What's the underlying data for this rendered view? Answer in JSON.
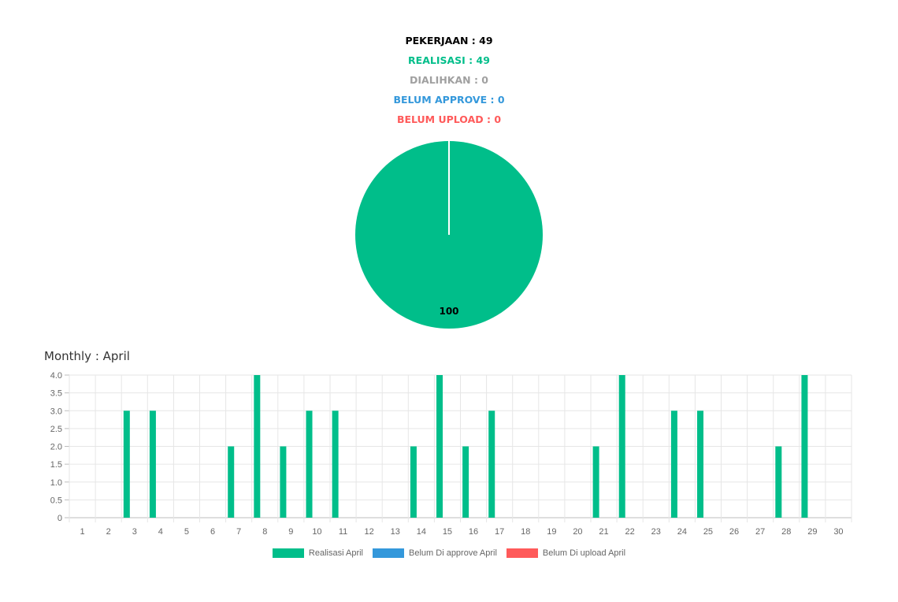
{
  "summary": {
    "pekerjaan": "PEKERJAAN : 49",
    "realisasi": "REALISASI : 49",
    "dialihkan": "DIALIHKAN : 0",
    "belum_approve": "BELUM APPROVE : 0",
    "belum_upload": "BELUM UPLOAD : 0"
  },
  "colors": {
    "pekerjaan": "#000000",
    "realisasi": "#00be8a",
    "dialihkan": "#a0a0a0",
    "belum_approve": "#3498db",
    "belum_upload": "#ff5a5a"
  },
  "monthly_title": "Monthly : April",
  "chart_data": [
    {
      "type": "pie",
      "slices": [
        {
          "value": 100,
          "color": "#00be8a",
          "label": "100"
        }
      ]
    },
    {
      "type": "bar",
      "categories": [
        "1",
        "2",
        "3",
        "4",
        "5",
        "6",
        "7",
        "8",
        "9",
        "10",
        "11",
        "12",
        "13",
        "14",
        "15",
        "16",
        "17",
        "18",
        "19",
        "20",
        "21",
        "22",
        "23",
        "24",
        "25",
        "26",
        "27",
        "28",
        "29",
        "30"
      ],
      "series": [
        {
          "name": "Realisasi April",
          "color": "#00be8a",
          "values": [
            0,
            0,
            3,
            3,
            0,
            0,
            2,
            4,
            2,
            3,
            3,
            0,
            0,
            2,
            4,
            2,
            3,
            0,
            0,
            0,
            2,
            4,
            0,
            3,
            3,
            0,
            0,
            2,
            4,
            0
          ]
        },
        {
          "name": "Belum Di approve April",
          "color": "#3498db",
          "values": [
            0,
            0,
            0,
            0,
            0,
            0,
            0,
            0,
            0,
            0,
            0,
            0,
            0,
            0,
            0,
            0,
            0,
            0,
            0,
            0,
            0,
            0,
            0,
            0,
            0,
            0,
            0,
            0,
            0,
            0
          ]
        },
        {
          "name": "Belum Di upload April",
          "color": "#ff5a5a",
          "values": [
            0,
            0,
            0,
            0,
            0,
            0,
            0,
            0,
            0,
            0,
            0,
            0,
            0,
            0,
            0,
            0,
            0,
            0,
            0,
            0,
            0,
            0,
            0,
            0,
            0,
            0,
            0,
            0,
            0,
            0
          ]
        }
      ],
      "yticks": [
        "0",
        "0.5",
        "1.0",
        "1.5",
        "2.0",
        "2.5",
        "3.0",
        "3.5",
        "4.0"
      ],
      "ylim": [
        0,
        4
      ],
      "grid": true,
      "legend": "bottom-center"
    }
  ]
}
